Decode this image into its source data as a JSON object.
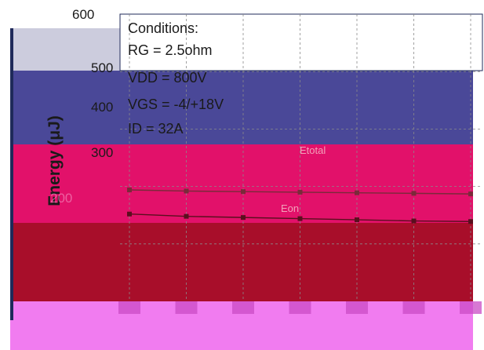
{
  "chart_data": {
    "type": "line",
    "ylabel": "Energy (μJ)",
    "ylim": [
      100,
      600
    ],
    "y_ticks": [
      "600",
      "500",
      "400",
      "300",
      "200"
    ],
    "x_tick_count": 7,
    "xlabel": "",
    "grid": true,
    "annotation_lines": [
      "Conditions:",
      "RG = 2.5ohm",
      "VDD = 800V",
      "VGS = -4/+18V",
      "ID = 32A"
    ],
    "series": [
      {
        "name": "Etotal",
        "values": [
          294,
          292,
          291,
          290,
          289,
          288,
          287
        ]
      },
      {
        "name": "Eon",
        "values": [
          252,
          248,
          246,
          244,
          242,
          240,
          239
        ]
      }
    ]
  },
  "colors": {
    "frame_navy": "#1f2a5a",
    "indigo_band": "#4a4898",
    "pale_band": "#cfcfe6",
    "crimson_band": "#e2116a",
    "dark_red_band": "#a80e2a",
    "magenta_band": "#f17cf0",
    "plot_background": "#ffffff"
  }
}
